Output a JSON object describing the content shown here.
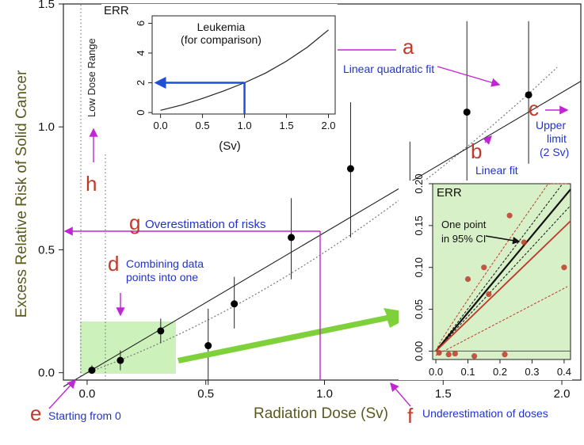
{
  "colors": {
    "purple": "#c026d3",
    "letter": "#c0392b",
    "note": "#2233cc",
    "axis_title": "#5a5a1e",
    "green_fill": "#c8f0b4",
    "green_arrow": "#7fd13b",
    "blue_arrow": "#1e4fd6",
    "red_curve": "#c0392b"
  },
  "chart_data": [
    {
      "type": "scatter",
      "xlabel": "Radiation Dose (Sv)",
      "ylabel": "Excess Relative Risk of Solid Cancer",
      "xlim": [
        -0.1,
        2.08
      ],
      "ylim": [
        -0.03,
        1.5
      ],
      "xticks": [
        "0.0",
        "0.5",
        "1.0",
        "1.5",
        "2.0"
      ],
      "yticks": [
        "0.0",
        "0.5",
        "1.0",
        "1.5"
      ],
      "points": [
        {
          "x": 0.02,
          "y": 0.01,
          "lo": 0.0,
          "hi": 0.03
        },
        {
          "x": 0.14,
          "y": 0.05,
          "lo": 0.01,
          "hi": 0.09
        },
        {
          "x": 0.31,
          "y": 0.17,
          "lo": 0.12,
          "hi": 0.22
        },
        {
          "x": 0.51,
          "y": 0.11,
          "lo": -0.05,
          "hi": 0.26
        },
        {
          "x": 0.62,
          "y": 0.28,
          "lo": 0.18,
          "hi": 0.39
        },
        {
          "x": 0.86,
          "y": 0.55,
          "lo": 0.38,
          "hi": 0.71
        },
        {
          "x": 1.11,
          "y": 0.83,
          "lo": 0.55,
          "hi": 1.1
        },
        {
          "x": 1.36,
          "y": 0.65,
          "lo": 0.48,
          "hi": 0.94
        },
        {
          "x": 1.6,
          "y": 1.06,
          "lo": 0.69,
          "hi": 1.43
        },
        {
          "x": 1.86,
          "y": 1.13,
          "lo": 0.85,
          "hi": 1.43
        }
      ],
      "linear_fit": {
        "slope": 0.57
      },
      "quadratic_fit": {
        "a": 0.35,
        "b": 0.14
      },
      "low_dose_range_label": "Low Dose Range",
      "annotations": {
        "a_letter": "a",
        "a_text": "Linear quadratic fit",
        "b_letter": "b",
        "b_text": "Linear fit",
        "c_letter": "c",
        "c_text1": "Upper",
        "c_text2": "limit",
        "c_text3": "(2 Sv)",
        "d_letter": "d",
        "d_text1": "Combining data",
        "d_text2": "points into one",
        "e_letter": "e",
        "e_text": "Starting from 0",
        "f_letter": "f",
        "f_text": "Underestimation of doses",
        "g_letter": "g",
        "g_text": "Overestimation of risks",
        "h_letter": "h"
      }
    },
    {
      "type": "line",
      "title_line1": "Leukemia",
      "title_line2": "(for comparison)",
      "ylabel": "ERR",
      "xlabel": "(Sv)",
      "xticks": [
        "0.0",
        "0.5",
        "1.0",
        "1.5",
        "2.0"
      ],
      "yticks": [
        "0",
        "2",
        "4",
        "6"
      ],
      "xlim": [
        -0.1,
        2.08
      ],
      "ylim": [
        -0.1,
        6.5
      ],
      "x": [
        0,
        0.25,
        0.5,
        0.75,
        1.0,
        1.25,
        1.5,
        1.75,
        2.0
      ],
      "y": [
        0.15,
        0.5,
        0.95,
        1.45,
        2.0,
        2.65,
        3.45,
        4.4,
        5.55
      ],
      "highlight_x": 1.0,
      "highlight_y": 2.0
    },
    {
      "type": "scatter",
      "ylabel": "ERR",
      "xticks": [
        "0.0",
        "0.1",
        "0.2",
        "0.3",
        "0.4"
      ],
      "yticks": [
        "0.00",
        "0.05",
        "0.10",
        "0.15",
        "0.20"
      ],
      "xlim": [
        -0.01,
        0.42
      ],
      "ylim": [
        -0.01,
        0.2
      ],
      "points": [
        {
          "x": 0.01,
          "y": -0.002
        },
        {
          "x": 0.04,
          "y": -0.004
        },
        {
          "x": 0.06,
          "y": -0.003
        },
        {
          "x": 0.1,
          "y": 0.086
        },
        {
          "x": 0.12,
          "y": -0.006
        },
        {
          "x": 0.15,
          "y": 0.1
        },
        {
          "x": 0.165,
          "y": 0.068
        },
        {
          "x": 0.215,
          "y": -0.004
        },
        {
          "x": 0.23,
          "y": 0.162
        },
        {
          "x": 0.275,
          "y": 0.13
        },
        {
          "x": 0.4,
          "y": 0.1
        }
      ],
      "black_fit_slope": 0.46,
      "red_fit_slope": 0.37,
      "note_line1": "One point",
      "note_line2": "in 95% CI"
    }
  ]
}
